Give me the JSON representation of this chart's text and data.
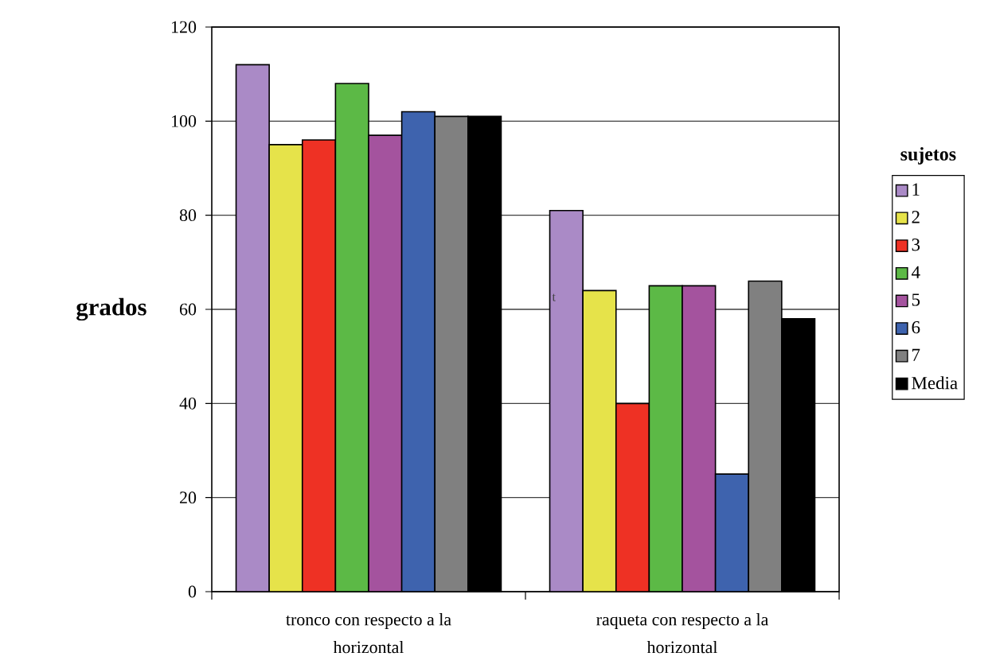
{
  "chart_data": {
    "type": "bar",
    "ylabel": "grados",
    "legend_title": "sujetos",
    "categories": [
      "tronco con respecto a la horizontal",
      "raqueta con respecto a la horizontal"
    ],
    "series": [
      {
        "name": "1",
        "color": "#aa8ac6",
        "values": [
          112,
          81
        ]
      },
      {
        "name": "2",
        "color": "#e6e34a",
        "values": [
          95,
          64
        ]
      },
      {
        "name": "3",
        "color": "#ee3124",
        "values": [
          96,
          40
        ]
      },
      {
        "name": "4",
        "color": "#5cb946",
        "values": [
          108,
          65
        ]
      },
      {
        "name": "5",
        "color": "#a4539e",
        "values": [
          97,
          65
        ]
      },
      {
        "name": "6",
        "color": "#3e63ae",
        "values": [
          102,
          25
        ]
      },
      {
        "name": "7",
        "color": "#808080",
        "values": [
          101,
          66
        ]
      },
      {
        "name": "Media",
        "color": "#000000",
        "values": [
          101,
          58
        ]
      }
    ],
    "ylim": [
      0,
      120
    ],
    "yticks": [
      0,
      20,
      40,
      60,
      80,
      100,
      120
    ],
    "grid": "y",
    "legend": "right",
    "annotations": [
      "t"
    ]
  }
}
